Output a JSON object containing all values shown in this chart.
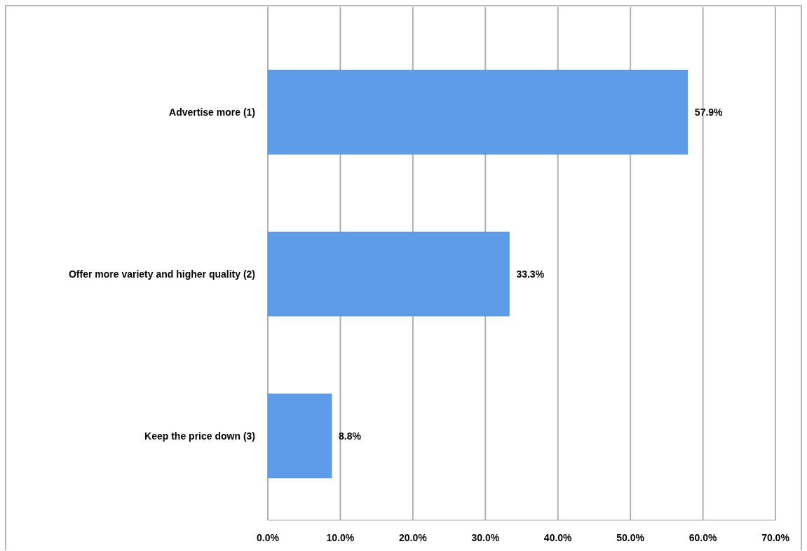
{
  "chart_data": {
    "type": "bar",
    "orientation": "horizontal",
    "categories": [
      "Advertise more (1)",
      "Offer more variety and higher quality (2)",
      "Keep the price down (3)"
    ],
    "values": [
      57.9,
      33.3,
      8.8
    ],
    "value_labels": [
      "57.9%",
      "33.3%",
      "8.8%"
    ],
    "color": "#5e9ce9",
    "xlim": [
      0,
      70
    ],
    "xticks": [
      {
        "value": 0,
        "label": "0.0%"
      },
      {
        "value": 10,
        "label": "10.0%"
      },
      {
        "value": 20,
        "label": "20.0%"
      },
      {
        "value": 30,
        "label": "30.0%"
      },
      {
        "value": 40,
        "label": "40.0%"
      },
      {
        "value": 50,
        "label": "50.0%"
      },
      {
        "value": 60,
        "label": "60.0%"
      },
      {
        "value": 70,
        "label": "70.0%"
      }
    ],
    "grid": "x"
  }
}
